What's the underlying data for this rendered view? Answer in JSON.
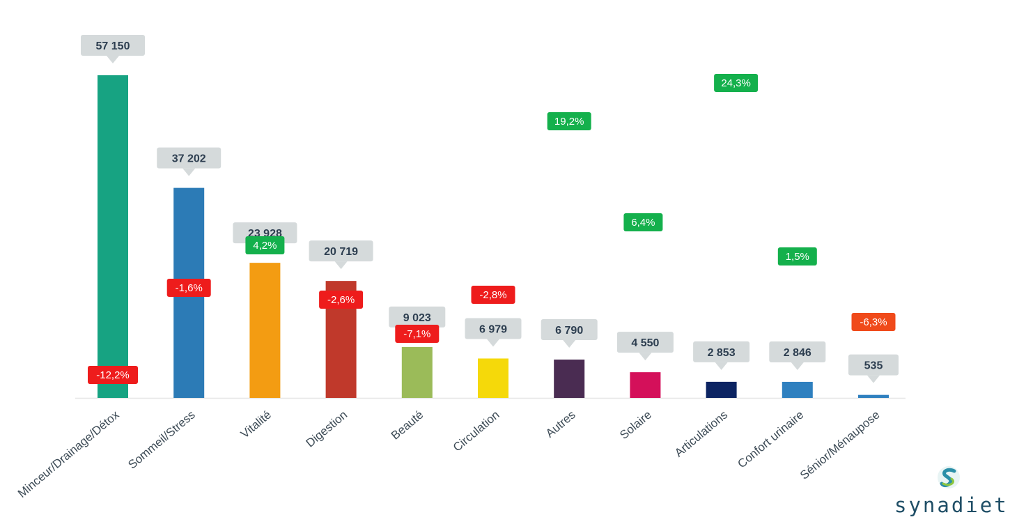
{
  "chart_data": {
    "type": "bar",
    "categories": [
      "Minceur/Drainage/Détox",
      "Sommeil/Stress",
      "Vitalité",
      "Digestion",
      "Beauté",
      "Circulation",
      "Autres",
      "Solaire",
      "Articulations",
      "Confort urinaire",
      "Sénior/Ménaupose"
    ],
    "values": [
      57150,
      37202,
      23928,
      20719,
      9023,
      6979,
      6790,
      4550,
      2853,
      2846,
      535
    ],
    "value_labels": [
      "57 150",
      "37 202",
      "23 928",
      "20 719",
      "9 023",
      "6 979",
      "6 790",
      "4 550",
      "2 853",
      "2 846",
      "535"
    ],
    "growth_labels": [
      "-12,2%",
      "-1,6%",
      "4,2%",
      "-2,6%",
      "-7,1%",
      "-2,8%",
      "19,2%",
      "6,4%",
      "24,3%",
      "1,5%",
      "-6,3%"
    ],
    "growth_values": [
      -12.2,
      -1.6,
      4.2,
      -2.6,
      -7.1,
      -2.8,
      19.2,
      6.4,
      24.3,
      1.5,
      -6.3
    ],
    "title": "",
    "xlabel": "",
    "ylabel": "",
    "ylim": [
      0,
      57150
    ],
    "grid": false,
    "legend": "none"
  },
  "colors": {
    "bars": [
      "#17a382",
      "#2c7bb6",
      "#f39c12",
      "#c0392b",
      "#9bbb59",
      "#f5d90a",
      "#4a2c52",
      "#d4105a",
      "#0c2462",
      "#2f80bf",
      "#2f80bf"
    ],
    "value_callout": "#d5dadb",
    "positive": "#14b04c",
    "negative": "#ee1c1c",
    "negative_alt": "#f04a1a",
    "axis": "#e6e6e6",
    "logo": "#1f4e66"
  },
  "logo": {
    "text": "synadiet",
    "icon": "synadiet-swirl-icon"
  }
}
